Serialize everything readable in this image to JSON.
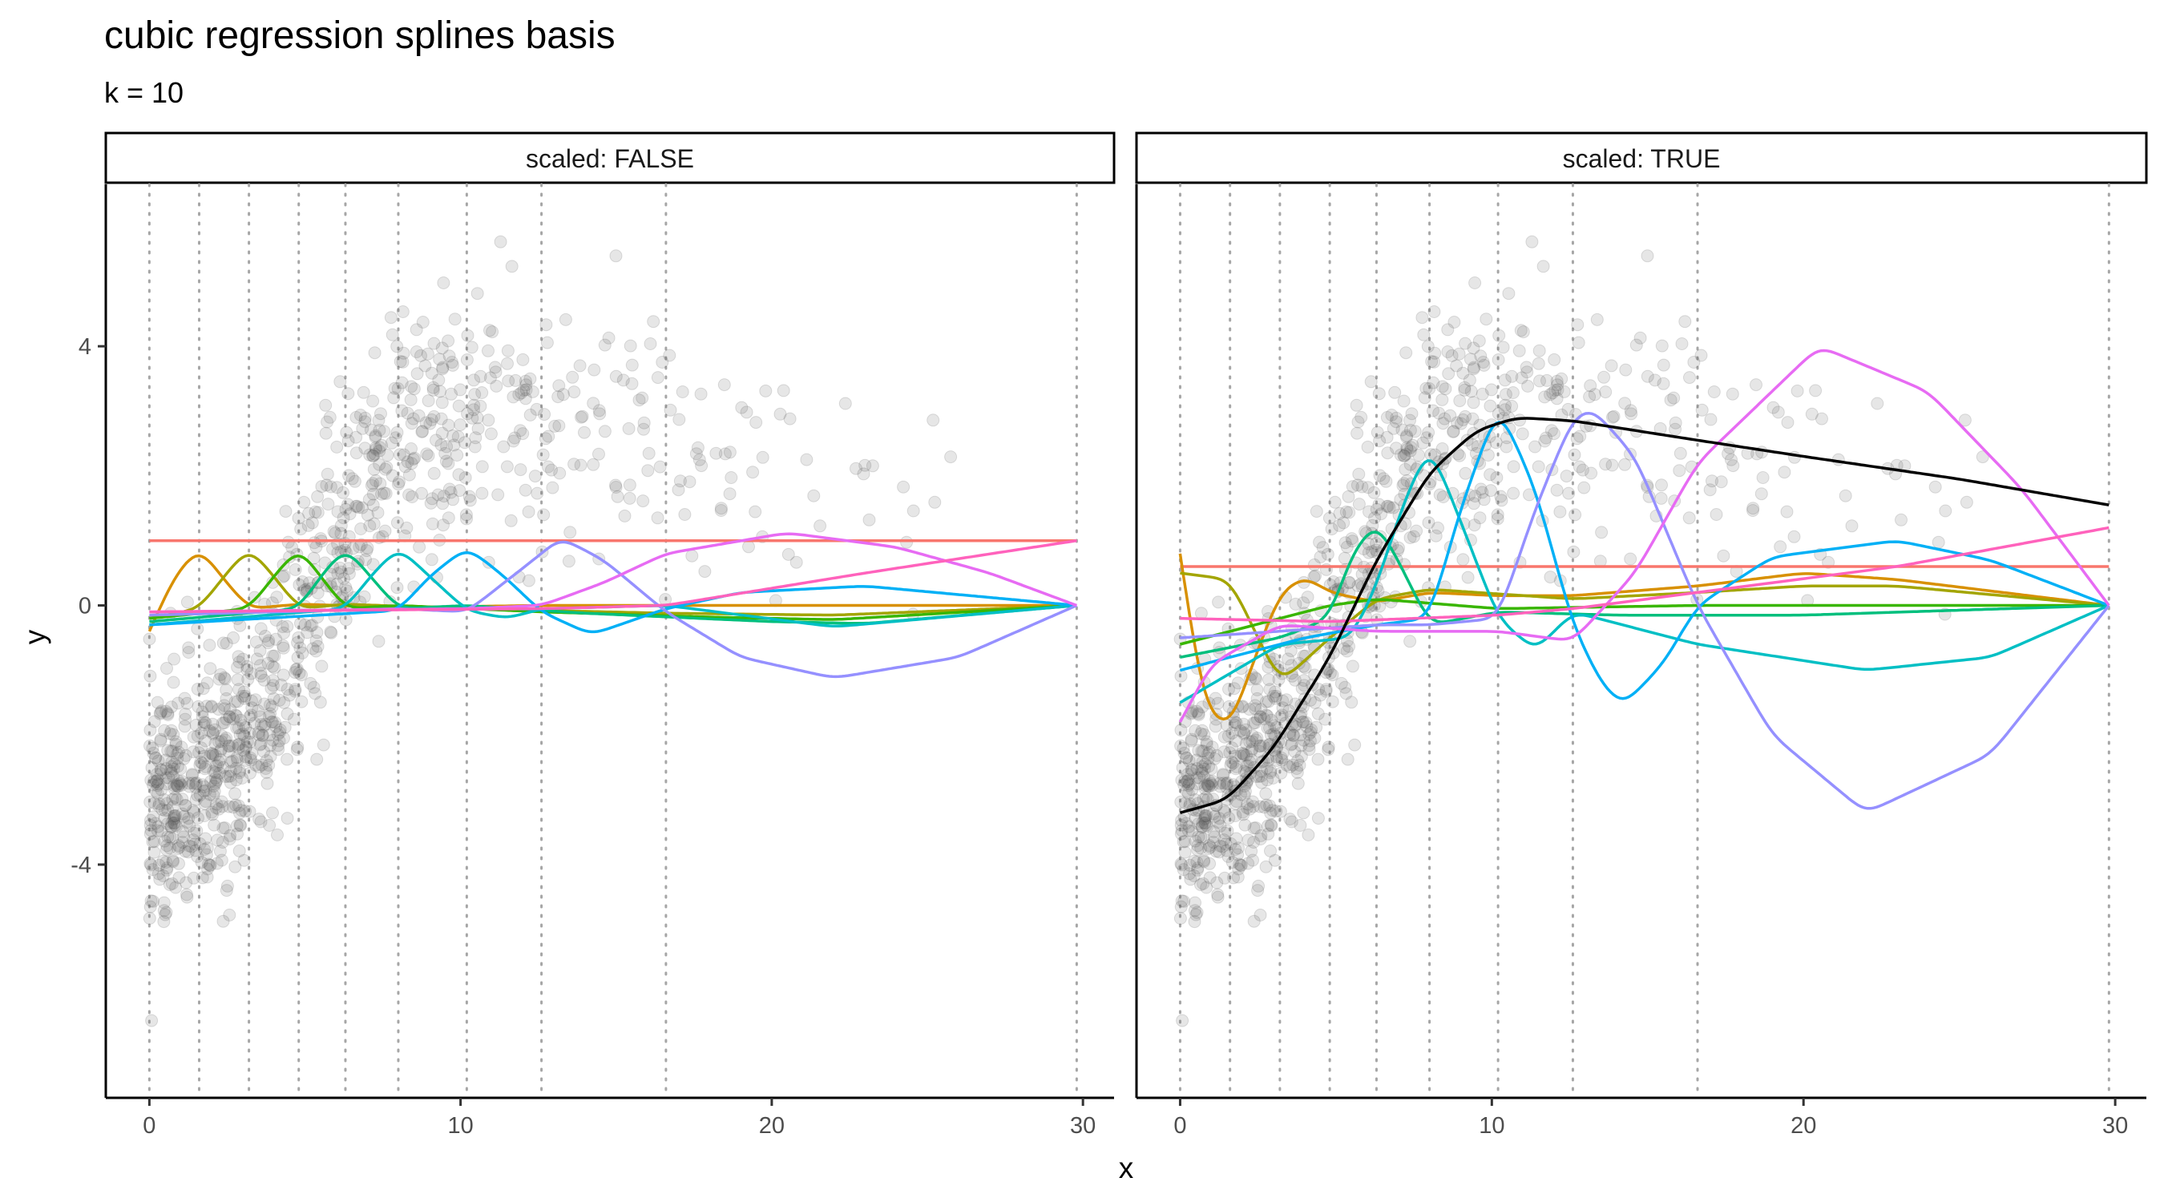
{
  "chart_data": {
    "type": "scatter",
    "title": "cubic regression splines basis",
    "subtitle": "k = 10",
    "xlabel": "x",
    "ylabel": "y",
    "xlim": [
      -1.4,
      31
    ],
    "ylim": [
      -7.6,
      6.5
    ],
    "x_ticks": [
      0,
      10,
      20,
      30
    ],
    "y_ticks": [
      -4,
      0,
      4
    ],
    "grid": false,
    "legend": "none",
    "knots": [
      0,
      1.6,
      3.2,
      4.8,
      6.3,
      8.0,
      10.2,
      12.6,
      16.6,
      29.8
    ],
    "colors": {
      "points": "#555555",
      "basis": [
        "#F8766D",
        "#D89000",
        "#A3A500",
        "#39B600",
        "#00BF7D",
        "#00BFC4",
        "#00B0F6",
        "#9590FF",
        "#E76BF3",
        "#FF62BC"
      ],
      "fit": "#000000",
      "knot_line": "#a6a6a6"
    },
    "facets": [
      {
        "strip_label": "scaled: FALSE",
        "basis": [
          {
            "points": [
              [
                0,
                1
              ],
              [
                29.8,
                1
              ]
            ]
          },
          {
            "points": [
              [
                0,
                -0.4
              ],
              [
                0.8,
                0.45
              ],
              [
                1.6,
                0.9
              ],
              [
                2.4,
                0.4
              ],
              [
                3.2,
                -0.05
              ],
              [
                4.8,
                0.02
              ],
              [
                8,
                -0.03
              ],
              [
                12.6,
                0
              ],
              [
                20,
                0
              ],
              [
                29.8,
                0
              ]
            ]
          },
          {
            "points": [
              [
                0,
                -0.2
              ],
              [
                1.6,
                -0.05
              ],
              [
                2.4,
                0.45
              ],
              [
                3.2,
                0.9
              ],
              [
                4,
                0.45
              ],
              [
                4.8,
                -0.05
              ],
              [
                6.3,
                0.02
              ],
              [
                10.2,
                -0.05
              ],
              [
                16.6,
                -0.12
              ],
              [
                22,
                -0.15
              ],
              [
                29.8,
                0
              ]
            ]
          },
          {
            "points": [
              [
                0,
                -0.2
              ],
              [
                3.2,
                -0.05
              ],
              [
                4,
                0.45
              ],
              [
                4.8,
                0.9
              ],
              [
                5.5,
                0.45
              ],
              [
                6.3,
                -0.05
              ],
              [
                8,
                0
              ],
              [
                12.6,
                -0.1
              ],
              [
                18,
                -0.18
              ],
              [
                22,
                -0.22
              ],
              [
                29.8,
                0
              ]
            ]
          },
          {
            "points": [
              [
                0,
                -0.25
              ],
              [
                4.8,
                -0.05
              ],
              [
                5.5,
                0.45
              ],
              [
                6.3,
                0.9
              ],
              [
                7.1,
                0.45
              ],
              [
                8,
                -0.05
              ],
              [
                10.2,
                0
              ],
              [
                14,
                -0.12
              ],
              [
                20,
                -0.25
              ],
              [
                23,
                -0.28
              ],
              [
                29.8,
                0
              ]
            ]
          },
          {
            "points": [
              [
                0,
                -0.3
              ],
              [
                6.3,
                -0.05
              ],
              [
                7.1,
                0.45
              ],
              [
                8,
                0.9
              ],
              [
                9,
                0.45
              ],
              [
                10.2,
                -0.08
              ],
              [
                11.5,
                -0.2
              ],
              [
                12.6,
                -0.05
              ],
              [
                16.6,
                0
              ],
              [
                22,
                -0.33
              ],
              [
                29.8,
                0
              ]
            ]
          },
          {
            "points": [
              [
                0,
                -0.3
              ],
              [
                8,
                -0.08
              ],
              [
                9,
                0.45
              ],
              [
                10.2,
                0.9
              ],
              [
                11.4,
                0.45
              ],
              [
                12.6,
                -0.1
              ],
              [
                14.2,
                -0.45
              ],
              [
                16.6,
                -0.05
              ],
              [
                19,
                0.2
              ],
              [
                23,
                0.3
              ],
              [
                29.8,
                0
              ]
            ]
          },
          {
            "points": [
              [
                0,
                -0.15
              ],
              [
                8,
                -0.05
              ],
              [
                10.2,
                -0.1
              ],
              [
                11.4,
                0.35
              ],
              [
                12.6,
                0.8
              ],
              [
                13.2,
                1.05
              ],
              [
                14.6,
                0.7
              ],
              [
                16.6,
                -0.1
              ],
              [
                19,
                -0.8
              ],
              [
                22,
                -1.12
              ],
              [
                26,
                -0.8
              ],
              [
                29.8,
                0
              ]
            ]
          },
          {
            "points": [
              [
                0,
                -0.1
              ],
              [
                10.2,
                -0.05
              ],
              [
                12.6,
                0
              ],
              [
                14.6,
                0.35
              ],
              [
                16.6,
                0.8
              ],
              [
                20.5,
                1.12
              ],
              [
                24,
                0.9
              ],
              [
                27,
                0.5
              ],
              [
                29.8,
                0
              ]
            ]
          },
          {
            "points": [
              [
                0,
                -0.1
              ],
              [
                12.6,
                -0.05
              ],
              [
                16.6,
                0
              ],
              [
                23,
                0.5
              ],
              [
                29.8,
                1
              ]
            ]
          }
        ]
      },
      {
        "strip_label": "scaled: TRUE",
        "basis": [
          {
            "points": [
              [
                0,
                0.6
              ],
              [
                29.8,
                0.6
              ]
            ]
          },
          {
            "points": [
              [
                0,
                0.8
              ],
              [
                0.4,
                -0.5
              ],
              [
                0.8,
                -1.6
              ],
              [
                1.6,
                -1.9
              ],
              [
                2.4,
                -0.8
              ],
              [
                3.2,
                0.2
              ],
              [
                4,
                0.45
              ],
              [
                4.8,
                0.2
              ],
              [
                6.3,
                0.05
              ],
              [
                8,
                0.2
              ],
              [
                10.2,
                0.15
              ],
              [
                12.6,
                0.15
              ],
              [
                16.6,
                0.3
              ],
              [
                20,
                0.5
              ],
              [
                23,
                0.4
              ],
              [
                29.8,
                0
              ]
            ]
          },
          {
            "points": [
              [
                0,
                0.5
              ],
              [
                1.6,
                0.4
              ],
              [
                3.2,
                -1.2
              ],
              [
                4.8,
                -0.5
              ],
              [
                6.3,
                0.1
              ],
              [
                8,
                0.25
              ],
              [
                12.6,
                0.1
              ],
              [
                16.6,
                0.2
              ],
              [
                20,
                0.3
              ],
              [
                23,
                0.3
              ],
              [
                29.8,
                0
              ]
            ]
          },
          {
            "points": [
              [
                0,
                -0.6
              ],
              [
                3.2,
                -0.2
              ],
              [
                4.8,
                0
              ],
              [
                6.3,
                0.1
              ],
              [
                10.2,
                -0.05
              ],
              [
                16.6,
                0
              ],
              [
                29.8,
                0
              ]
            ]
          },
          {
            "points": [
              [
                0,
                -0.8
              ],
              [
                3.2,
                -0.5
              ],
              [
                4.8,
                -0.2
              ],
              [
                5.5,
                0.8
              ],
              [
                6.3,
                1.3
              ],
              [
                7.1,
                0.6
              ],
              [
                8,
                -0.3
              ],
              [
                10.2,
                -0.1
              ],
              [
                14,
                -0.15
              ],
              [
                20,
                -0.15
              ],
              [
                29.8,
                0
              ]
            ]
          },
          {
            "points": [
              [
                0,
                -1.5
              ],
              [
                3.2,
                -0.6
              ],
              [
                5.5,
                -0.5
              ],
              [
                6.3,
                0.3
              ],
              [
                7.1,
                1.5
              ],
              [
                8,
                2.5
              ],
              [
                9,
                1.3
              ],
              [
                10.2,
                -0.2
              ],
              [
                11.4,
                -0.7
              ],
              [
                12.6,
                -0.1
              ],
              [
                16.6,
                -0.6
              ],
              [
                22,
                -1
              ],
              [
                26,
                -0.8
              ],
              [
                29.8,
                0
              ]
            ]
          },
          {
            "points": [
              [
                0,
                -1
              ],
              [
                4,
                -0.5
              ],
              [
                6.3,
                -0.3
              ],
              [
                8,
                -0.2
              ],
              [
                9,
                1.5
              ],
              [
                10.2,
                3.1
              ],
              [
                11.4,
                1.8
              ],
              [
                12.6,
                -0.3
              ],
              [
                13.5,
                -1.2
              ],
              [
                14.2,
                -1.55
              ],
              [
                15.5,
                -0.9
              ],
              [
                16.6,
                0
              ],
              [
                19,
                0.75
              ],
              [
                23,
                1
              ],
              [
                26,
                0.7
              ],
              [
                29.8,
                0
              ]
            ]
          },
          {
            "points": [
              [
                0,
                -0.5
              ],
              [
                6.3,
                -0.3
              ],
              [
                8,
                -0.3
              ],
              [
                10.2,
                -0.2
              ],
              [
                11.4,
                1.5
              ],
              [
                12.6,
                2.9
              ],
              [
                13.2,
                3.05
              ],
              [
                14.6,
                2.3
              ],
              [
                16.6,
                0
              ],
              [
                19,
                -2
              ],
              [
                22,
                -3.2
              ],
              [
                26,
                -2.3
              ],
              [
                29.8,
                0
              ]
            ]
          },
          {
            "points": [
              [
                0,
                -1.8
              ],
              [
                1,
                -0.9
              ],
              [
                3.2,
                -0.3
              ],
              [
                6.3,
                -0.4
              ],
              [
                10.2,
                -0.4
              ],
              [
                12.6,
                -0.55
              ],
              [
                14.6,
                0.5
              ],
              [
                16.6,
                2.2
              ],
              [
                20.5,
                4
              ],
              [
                24,
                3.3
              ],
              [
                27,
                1.8
              ],
              [
                29.8,
                0
              ]
            ]
          },
          {
            "points": [
              [
                0,
                -0.2
              ],
              [
                4.8,
                -0.25
              ],
              [
                10.2,
                -0.15
              ],
              [
                12.6,
                -0.05
              ],
              [
                16.6,
                0.2
              ],
              [
                23,
                0.6
              ],
              [
                29.8,
                1.2
              ]
            ]
          }
        ],
        "fit": {
          "points": [
            [
              0,
              -3.2
            ],
            [
              1.5,
              -3
            ],
            [
              3,
              -2.2
            ],
            [
              4.8,
              -0.8
            ],
            [
              6.3,
              0.7
            ],
            [
              8,
              2.05
            ],
            [
              9.5,
              2.7
            ],
            [
              10.8,
              2.9
            ],
            [
              12.6,
              2.85
            ],
            [
              16.6,
              2.55
            ],
            [
              20,
              2.3
            ],
            [
              25,
              1.95
            ],
            [
              29.8,
              1.55
            ]
          ]
        }
      }
    ]
  }
}
